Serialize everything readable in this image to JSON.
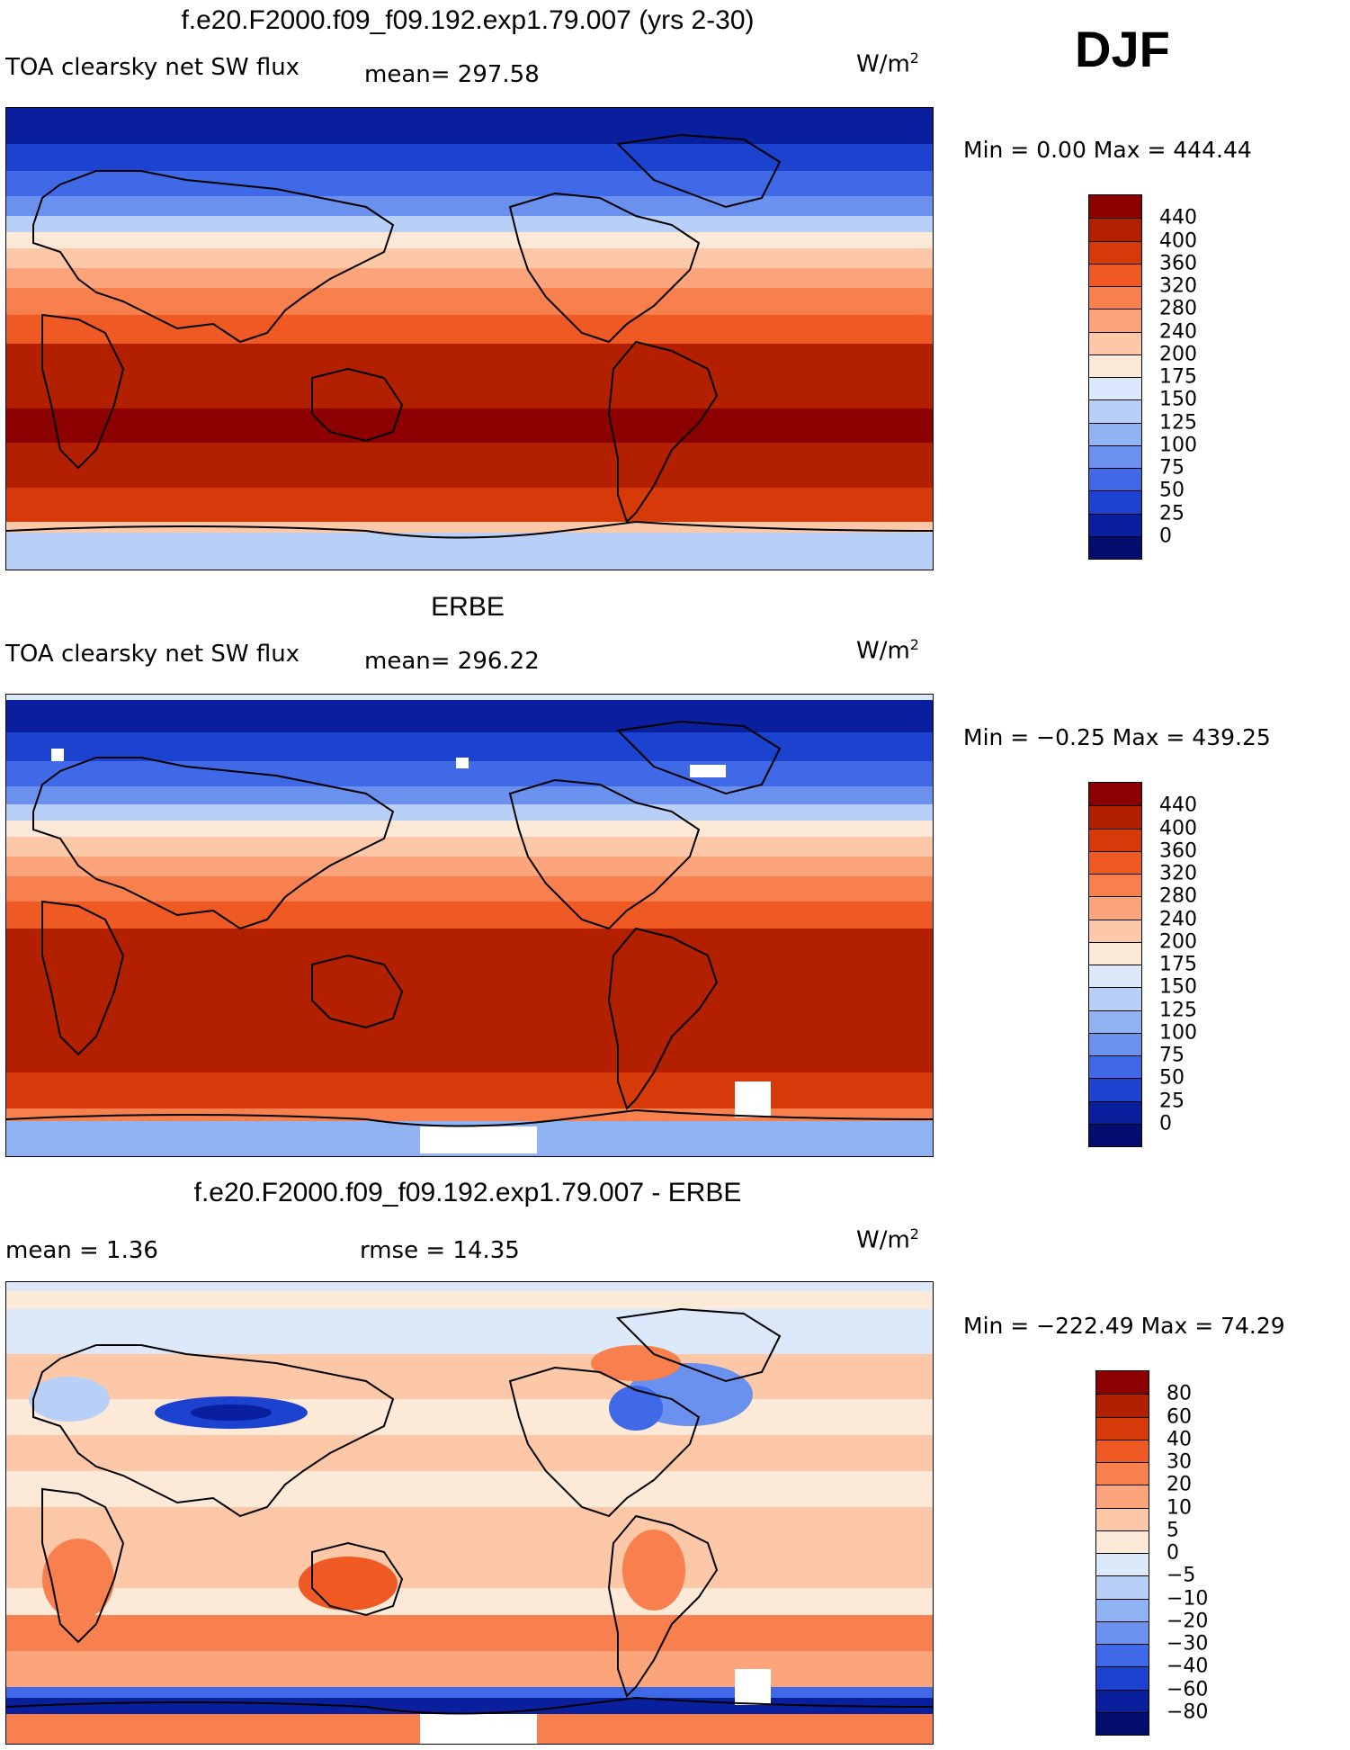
{
  "season": "DJF",
  "units_text": "W/m",
  "units_exp": "2",
  "panels": [
    {
      "title": "f.e20.F2000.f09_f09.192.exp1.79.007 (yrs 2-30)",
      "field": "TOA clearsky net SW flux",
      "mean_label": "mean= 297.58",
      "stats_right": "",
      "minmax": "Min =    0.00 Max = 444.44",
      "colorbar_ticks": [
        "440",
        "400",
        "360",
        "320",
        "280",
        "240",
        "200",
        "175",
        "150",
        "125",
        "100",
        "75",
        "50",
        "25",
        "0"
      ],
      "colorbar_colors": [
        "#8c0000",
        "#b22000",
        "#d63a08",
        "#ef5a24",
        "#f7804e",
        "#fca57c",
        "#fcc8a8",
        "#fde9d8",
        "#dbe9fb",
        "#b8d0f7",
        "#90b3f3",
        "#6a91ee",
        "#3f69e6",
        "#1c42d0",
        "#0a1f9e",
        "#020d6e"
      ]
    },
    {
      "title": "ERBE",
      "field": "TOA clearsky net SW flux",
      "mean_label": "mean= 296.22",
      "stats_right": "",
      "minmax": "Min =  −0.25 Max = 439.25",
      "colorbar_ticks": [
        "440",
        "400",
        "360",
        "320",
        "280",
        "240",
        "200",
        "175",
        "150",
        "125",
        "100",
        "75",
        "50",
        "25",
        "0"
      ],
      "colorbar_colors": [
        "#8c0000",
        "#b22000",
        "#d63a08",
        "#ef5a24",
        "#f7804e",
        "#fca57c",
        "#fcc8a8",
        "#fde9d8",
        "#dbe9fb",
        "#b8d0f7",
        "#90b3f3",
        "#6a91ee",
        "#3f69e6",
        "#1c42d0",
        "#0a1f9e",
        "#020d6e"
      ]
    },
    {
      "title": "f.e20.F2000.f09_f09.192.exp1.79.007 - ERBE",
      "field": "mean =    1.36",
      "mean_label": "",
      "stats_right": "rmse =   14.35",
      "minmax": "Min = −222.49 Max =   74.29",
      "colorbar_ticks": [
        "80",
        "60",
        "40",
        "30",
        "20",
        "10",
        "5",
        "0",
        "−5",
        "−10",
        "−20",
        "−30",
        "−40",
        "−60",
        "−80"
      ],
      "colorbar_colors": [
        "#8c0000",
        "#b22000",
        "#d63a08",
        "#ef5a24",
        "#f7804e",
        "#fca57c",
        "#fcc8a8",
        "#fde9d8",
        "#dbe9fb",
        "#b8d0f7",
        "#90b3f3",
        "#6a91ee",
        "#3f69e6",
        "#1c42d0",
        "#0a1f9e",
        "#020d6e"
      ]
    }
  ]
}
